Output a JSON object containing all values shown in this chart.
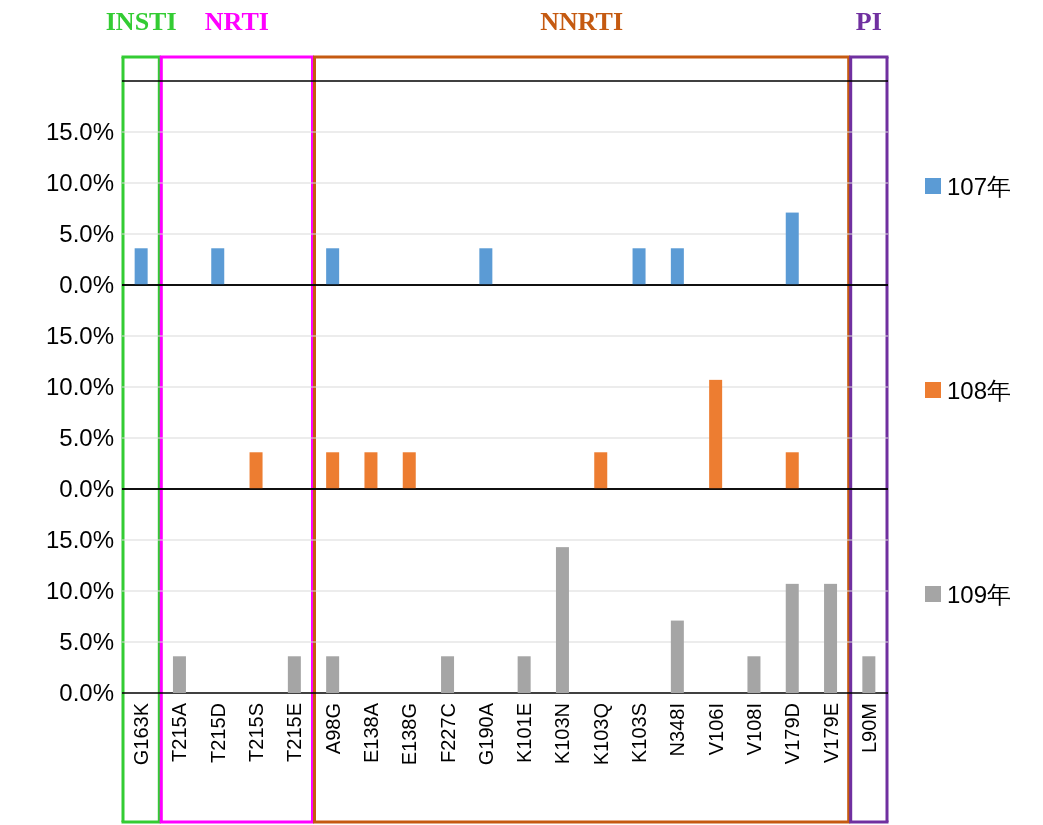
{
  "chart_data": [
    {
      "type": "bar",
      "categories": [
        null,
        null,
        null,
        null,
        null,
        null,
        null,
        null,
        null,
        null,
        null,
        null,
        null,
        null,
        null,
        null,
        null,
        null,
        null,
        null
      ],
      "series": [
        {
          "name": "107年",
          "color": "#5b9bd5",
          "values": [
            3.6,
            null,
            3.6,
            null,
            null,
            3.6,
            null,
            null,
            null,
            3.6,
            null,
            null,
            null,
            3.6,
            3.6,
            null,
            null,
            7.1,
            null,
            null
          ]
        }
      ],
      "ylim": [
        0,
        20
      ],
      "yticks": [
        {
          "value": 0,
          "label": "0.0%"
        },
        {
          "value": 5,
          "label": "5.0%"
        },
        {
          "value": 10,
          "label": "10.0%"
        },
        {
          "value": 15,
          "label": "15.0%"
        }
      ],
      "grid": "y",
      "legend": "right",
      "tick_labels": "y",
      "annotations": [
        "INSTI",
        "NRTI",
        "NNRTI",
        "PI"
      ]
    },
    {
      "type": "bar",
      "categories": [
        null,
        null,
        null,
        null,
        null,
        null,
        null,
        null,
        null,
        null,
        null,
        null,
        null,
        null,
        null,
        null,
        null,
        null,
        null,
        null
      ],
      "series": [
        {
          "name": "108年",
          "color": "#ed7d31",
          "values": [
            null,
            null,
            null,
            3.6,
            null,
            3.6,
            3.6,
            3.6,
            null,
            null,
            null,
            null,
            3.6,
            null,
            null,
            10.7,
            null,
            3.6,
            null,
            null
          ]
        }
      ],
      "ylim": [
        0,
        20
      ],
      "yticks": [
        {
          "value": 0,
          "label": "0.0%"
        },
        {
          "value": 5,
          "label": "5.0%"
        },
        {
          "value": 10,
          "label": "10.0%"
        },
        {
          "value": 15,
          "label": "15.0%"
        }
      ],
      "grid": "y",
      "legend": "right",
      "tick_labels": "y"
    },
    {
      "type": "bar",
      "categories": [
        "G163K",
        "T215A",
        "T215D",
        "T215S",
        "T215E",
        "A98G",
        "E138A",
        "E138G",
        "F227C",
        "G190A",
        "K101E",
        "K103N",
        "K103Q",
        "K103S",
        "N348I",
        "V106I",
        "V108I",
        "V179D",
        "V179E",
        "L90M"
      ],
      "series": [
        {
          "name": "109年",
          "color": "#a5a5a5",
          "values": [
            null,
            3.6,
            null,
            null,
            3.6,
            3.6,
            null,
            null,
            3.6,
            null,
            3.6,
            14.3,
            null,
            null,
            7.1,
            null,
            3.6,
            10.7,
            10.7,
            3.6
          ]
        }
      ],
      "ylim": [
        0,
        20
      ],
      "yticks": [
        {
          "value": 0,
          "label": "0.0%"
        },
        {
          "value": 5,
          "label": "5.0%"
        },
        {
          "value": 10,
          "label": "10.0%"
        },
        {
          "value": 15,
          "label": "15.0%"
        }
      ],
      "grid": "y",
      "legend": "right"
    }
  ]
}
